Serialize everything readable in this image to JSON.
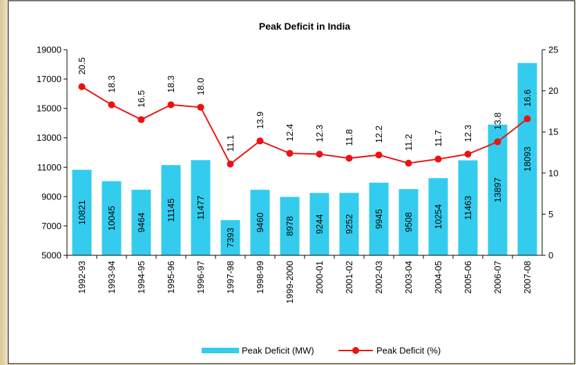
{
  "chart_data": {
    "type": "bar_line",
    "title": "Peak Deficit in India",
    "categories": [
      "1992-93",
      "1993-94",
      "1994-95",
      "1995-96",
      "1996-97",
      "1997-98",
      "1998-99",
      "1999-2000",
      "2000-01",
      "2001-02",
      "2002-03",
      "2003-04",
      "2004-05",
      "2005-06",
      "2006-07",
      "2007-08"
    ],
    "series": [
      {
        "name": "Peak Deficit (MW)",
        "color": "#33ccee",
        "type": "bar",
        "values": [
          10821,
          10045,
          9464,
          11145,
          11477,
          7393,
          9460,
          8978,
          9244,
          9252,
          9945,
          9508,
          10254,
          11463,
          13897,
          18093
        ]
      },
      {
        "name": "Peak Deficit (%)",
        "color": "#ee1111",
        "type": "line",
        "axis": "y2",
        "values": [
          20.5,
          18.3,
          16.5,
          18.3,
          18.0,
          11.1,
          13.9,
          12.4,
          12.3,
          11.8,
          12.2,
          11.2,
          11.7,
          12.3,
          13.8,
          16.6
        ],
        "value_labels": [
          "20.5",
          "18.3",
          "16.5",
          "18.3",
          "18.0",
          "11.1",
          "13.9",
          "12.4",
          "12.3",
          "11.8",
          "12.2",
          "11.2",
          "11.7",
          "12.3",
          "13.8",
          "16.6"
        ]
      }
    ],
    "ylim": [
      5000,
      19000
    ],
    "yticks": [
      5000,
      7000,
      9000,
      11000,
      13000,
      15000,
      17000,
      19000
    ],
    "y2lim": [
      0,
      25
    ],
    "y2ticks": [
      0,
      5,
      10,
      15,
      20,
      25
    ]
  }
}
